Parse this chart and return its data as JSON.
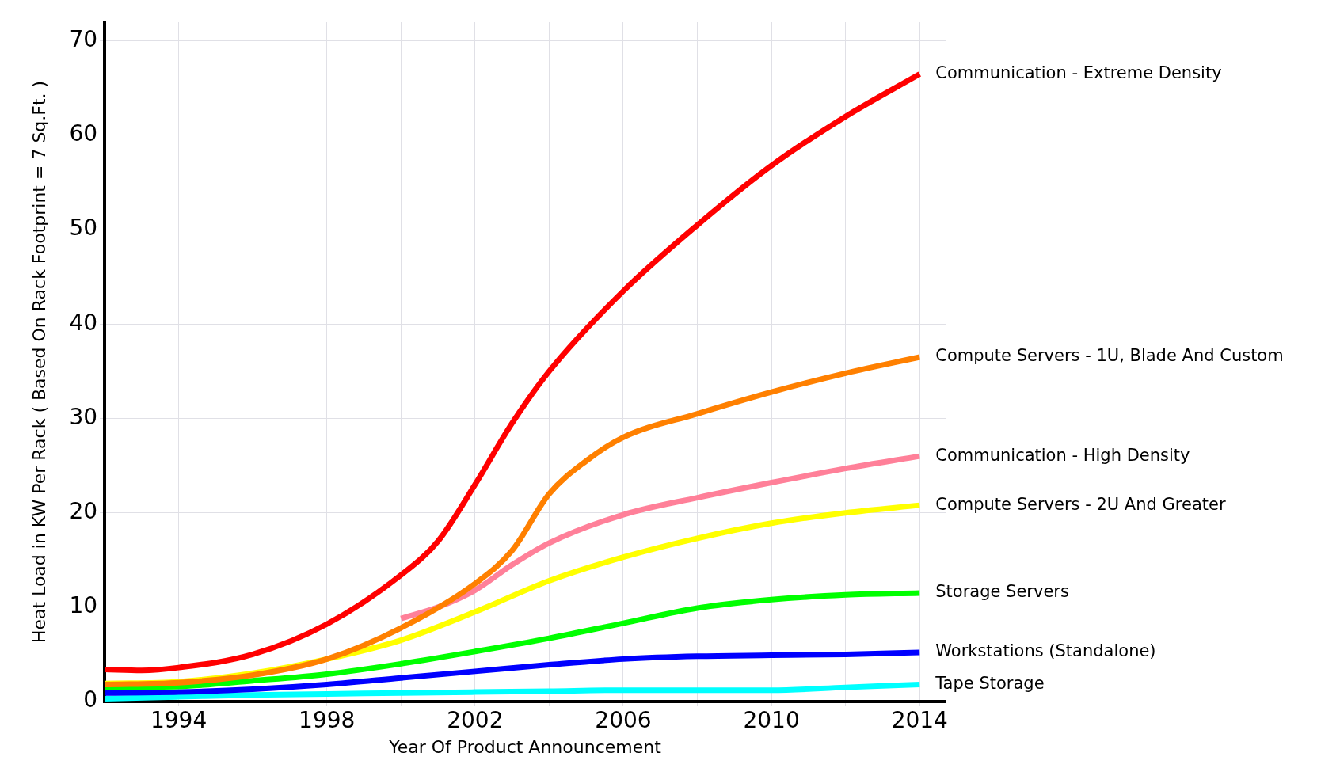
{
  "chart_data": {
    "type": "line",
    "xlabel": "Year Of Product Announcement",
    "ylabel": "Heat Load in KW Per Rack ( Based On Rack Footprint = 7 Sq.Ft. )",
    "xlim": [
      1992,
      2014.7
    ],
    "xticks": [
      {
        "value": 1992,
        "label": null
      },
      1994,
      {
        "value": 1996,
        "label": null
      },
      1998,
      {
        "value": 2000,
        "label": null
      },
      2002,
      {
        "value": 2004,
        "label": null
      },
      2006,
      {
        "value": 2008,
        "label": null
      },
      2010,
      {
        "value": 2012,
        "label": null
      },
      2014
    ],
    "ylim": [
      0,
      72
    ],
    "yticks": [
      0,
      10,
      20,
      30,
      40,
      50,
      60,
      70
    ],
    "grid": true,
    "legend": false,
    "marker": "none",
    "line_style": "solid",
    "series": [
      {
        "name": "Communication - Extreme Density",
        "color": "#ff0000",
        "x": [
          1992,
          1993,
          1994,
          1996,
          1998,
          2000,
          2001,
          2002,
          2003,
          2004,
          2006,
          2008,
          2010,
          2012,
          2014
        ],
        "values": [
          3.4,
          3.3,
          3.6,
          5.0,
          8.2,
          13.4,
          17,
          23,
          29.5,
          35,
          43.5,
          50.5,
          56.8,
          62,
          66.5
        ]
      },
      {
        "name": "Compute Servers - 1U, Blade And Custom",
        "color": "#ff8000",
        "x": [
          1992,
          1994,
          1996,
          1998,
          2000,
          2002,
          2003,
          2004,
          2005,
          2006,
          2008,
          2010,
          2012,
          2014
        ],
        "values": [
          1.8,
          2.0,
          2.8,
          4.5,
          7.8,
          12.5,
          16,
          22,
          25.5,
          28,
          30.5,
          32.8,
          34.8,
          36.5
        ]
      },
      {
        "name": "Communication - High Density",
        "color": "#ff8099",
        "x": [
          2000,
          2001,
          2002,
          2003,
          2004,
          2006,
          2008,
          2010,
          2012,
          2014
        ],
        "values": [
          8.8,
          10,
          11.8,
          14.5,
          16.8,
          19.8,
          21.6,
          23.2,
          24.7,
          26
        ]
      },
      {
        "name": "Compute Servers - 2U And Greater",
        "color": "#ffff00",
        "x": [
          1992,
          1994,
          1996,
          1998,
          2000,
          2002,
          2004,
          2006,
          2008,
          2010,
          2012,
          2014
        ],
        "values": [
          1.9,
          2.1,
          3.0,
          4.5,
          6.5,
          9.5,
          12.8,
          15.3,
          17.3,
          18.9,
          20.0,
          20.8
        ]
      },
      {
        "name": "Storage Servers",
        "color": "#00ff00",
        "x": [
          1992,
          1994,
          1996,
          1998,
          2000,
          2002,
          2004,
          2006,
          2008,
          2010,
          2012,
          2014
        ],
        "values": [
          1.5,
          1.6,
          2.2,
          2.9,
          4.0,
          5.3,
          6.7,
          8.3,
          9.9,
          10.8,
          11.3,
          11.5
        ]
      },
      {
        "name": "Workstations (Standalone)",
        "color": "#0000ff",
        "x": [
          1992,
          1994,
          1996,
          1998,
          2000,
          2002,
          2004,
          2006,
          2008,
          2010,
          2012,
          2014
        ],
        "values": [
          0.9,
          1.0,
          1.3,
          1.8,
          2.5,
          3.2,
          3.9,
          4.5,
          4.8,
          4.9,
          5.0,
          5.2
        ]
      },
      {
        "name": "Tape Storage",
        "color": "#00ffff",
        "x": [
          1992,
          1994,
          1996,
          1998,
          2000,
          2002,
          2004,
          2006,
          2008,
          2010,
          2012,
          2014
        ],
        "values": [
          0.3,
          0.5,
          0.7,
          0.8,
          0.9,
          1.0,
          1.1,
          1.2,
          1.2,
          1.2,
          1.5,
          1.8
        ]
      }
    ]
  }
}
